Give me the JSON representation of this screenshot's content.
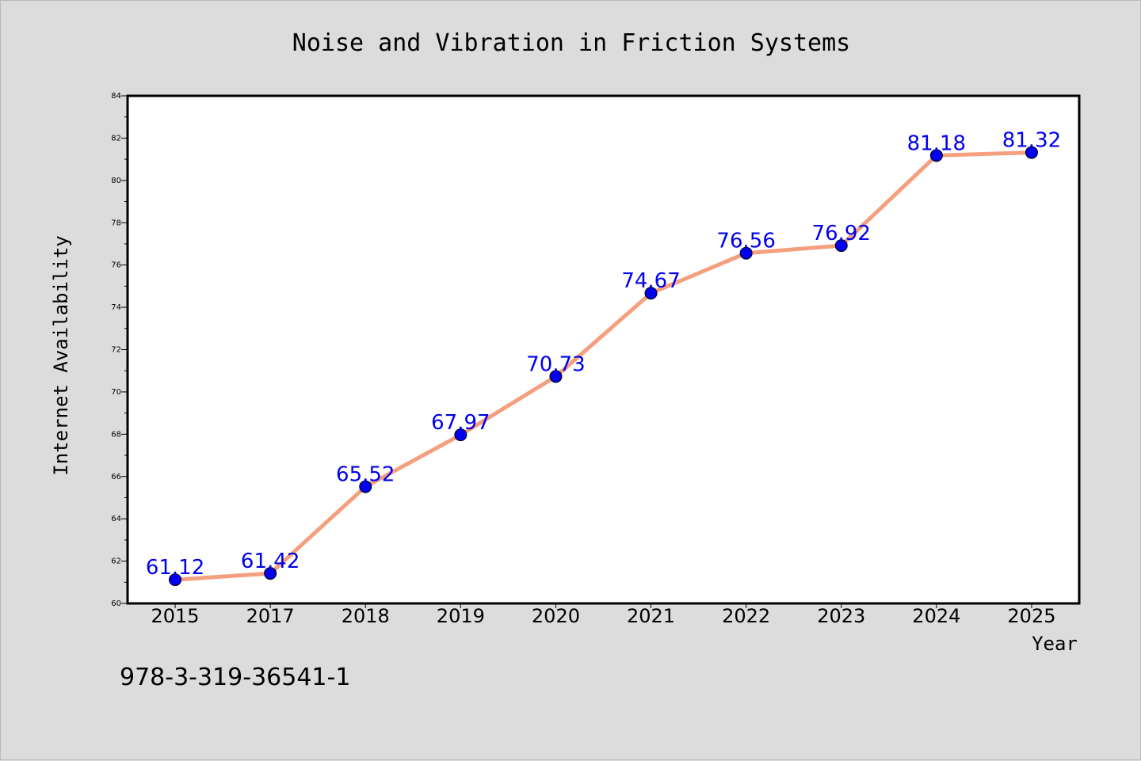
{
  "chart_data": {
    "type": "line",
    "title": "Noise and Vibration in Friction Systems",
    "xlabel": "Year",
    "ylabel": "Internet Availability",
    "categories": [
      "2015",
      "2017",
      "2018",
      "2019",
      "2020",
      "2021",
      "2022",
      "2023",
      "2024",
      "2025"
    ],
    "values": [
      61.12,
      61.42,
      65.52,
      67.97,
      70.73,
      74.67,
      76.56,
      76.92,
      81.18,
      81.32
    ],
    "data_labels": [
      "61.12",
      "61.42",
      "65.52",
      "67.97",
      "70.73",
      "74.67",
      "76.56",
      "76.92",
      "81.18",
      "81.32"
    ],
    "ylim": [
      60,
      84
    ],
    "yticks": [
      60,
      62,
      64,
      66,
      68,
      70,
      72,
      74,
      76,
      78,
      80,
      82,
      84
    ],
    "grid": false,
    "legend": "none",
    "colors": {
      "line": "#f4a07e",
      "marker": "#0000ee",
      "label": "#0000ee",
      "background": "#dcdcdc",
      "plot_background": "#ffffff"
    }
  },
  "footer": {
    "isbn": "978-3-319-36541-1"
  }
}
